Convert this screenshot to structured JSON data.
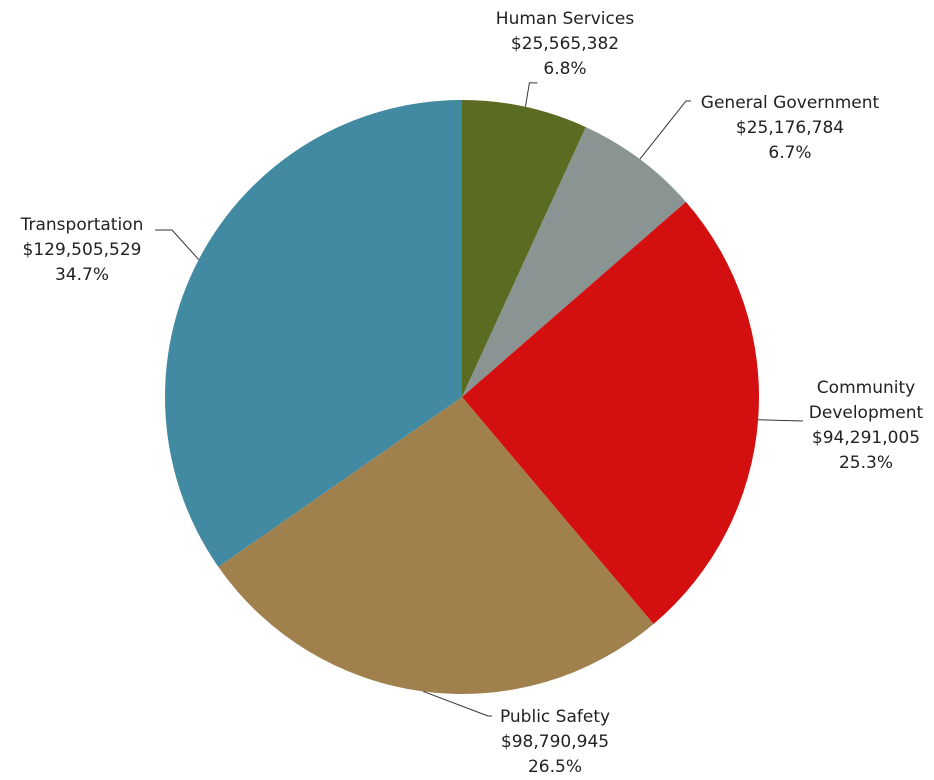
{
  "chart_data": {
    "type": "pie",
    "title": "",
    "start_angle_deg": 0,
    "direction": "clockwise",
    "slices": [
      {
        "label": "Human Services",
        "value": 25565382,
        "value_label": "$25,565,382",
        "percent_label": "6.8%",
        "color": "#5b6b22"
      },
      {
        "label": "General Government",
        "value": 25176784,
        "value_label": "$25,176,784",
        "percent_label": "6.7%",
        "color": "#899493"
      },
      {
        "label": "Community Development",
        "value": 94291005,
        "value_label": "$94,291,005",
        "percent_label": "25.3%",
        "color": "#d40f10"
      },
      {
        "label": "Public Safety",
        "value": 98790945,
        "value_label": "$98,790,945",
        "percent_label": "26.5%",
        "color": "#a0814e"
      },
      {
        "label": "Transportation",
        "value": 129505529,
        "value_label": "$129,505,529",
        "percent_label": "34.7%",
        "color": "#418aa2"
      }
    ],
    "label_lines": [
      [
        "Human Services"
      ],
      [
        "General Government"
      ],
      [
        "Community",
        "Development"
      ],
      [
        "Public Safety"
      ],
      [
        "Transportation"
      ]
    ]
  }
}
